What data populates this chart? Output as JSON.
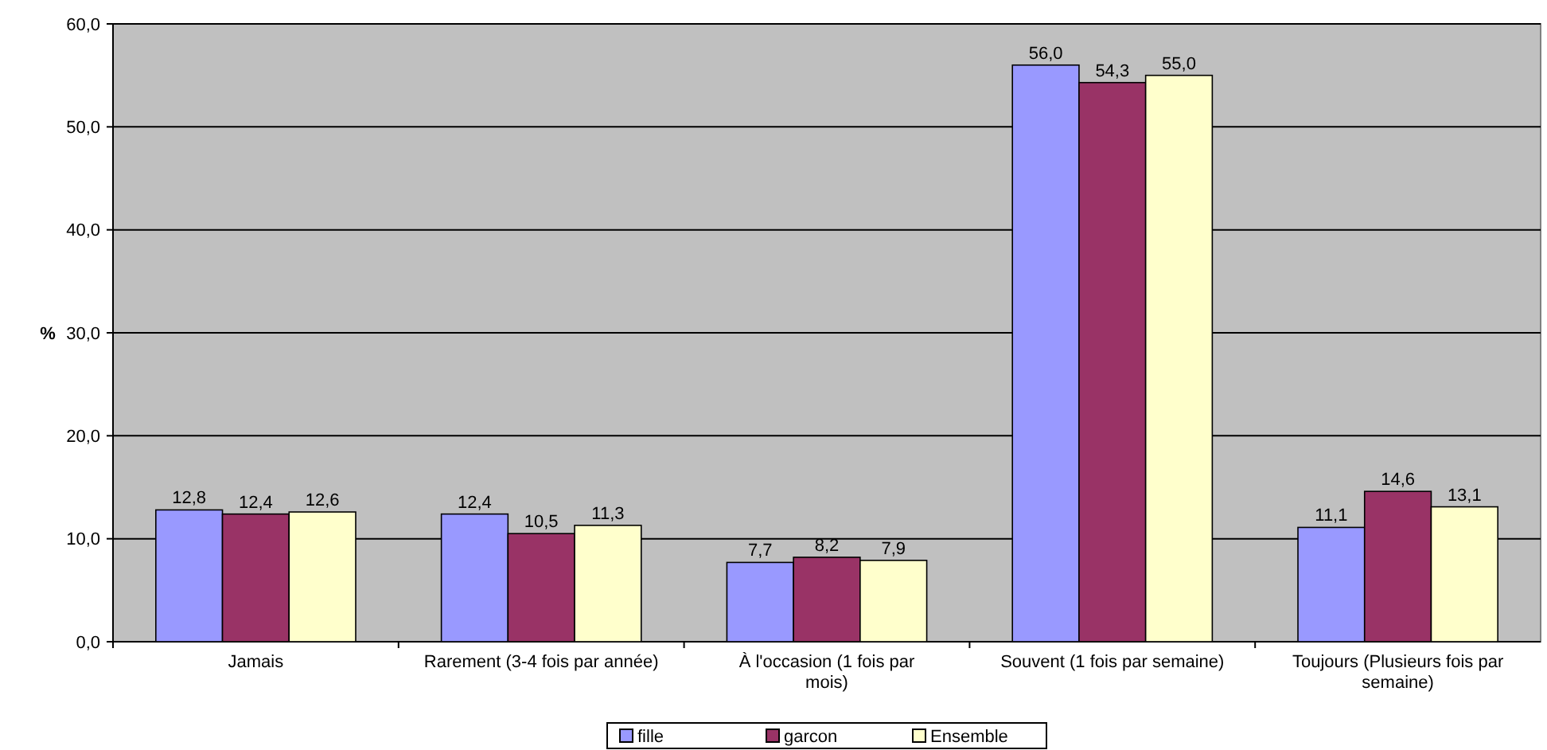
{
  "chart_data": {
    "type": "bar",
    "ylabel": "%",
    "categories": [
      "Jamais",
      "Rarement (3-4 fois par année)",
      "À l'occasion (1 fois par mois)",
      "Souvent (1 fois par semaine)",
      "Toujours (Plusieurs fois par semaine)"
    ],
    "series": [
      {
        "name": "fille",
        "color": "#9999ff",
        "values": [
          12.8,
          12.4,
          7.7,
          56.0,
          11.1
        ],
        "value_labels": [
          "12,8",
          "12,4",
          "7,7",
          "56,0",
          "11,1"
        ]
      },
      {
        "name": "garcon",
        "color": "#993366",
        "values": [
          12.4,
          10.5,
          8.2,
          54.3,
          14.6
        ],
        "value_labels": [
          "12,4",
          "10,5",
          "8,2",
          "54,3",
          "14,6"
        ]
      },
      {
        "name": "Ensemble",
        "color": "#ffffcc",
        "values": [
          12.6,
          11.3,
          7.9,
          55.0,
          13.1
        ],
        "value_labels": [
          "12,6",
          "11,3",
          "7,9",
          "55,0",
          "13,1"
        ]
      }
    ],
    "ylim": [
      0,
      60
    ],
    "yticks": [
      {
        "value": 0,
        "label": "0,0"
      },
      {
        "value": 10,
        "label": "10,0"
      },
      {
        "value": 20,
        "label": "20,0"
      },
      {
        "value": 30,
        "label": "30,0"
      },
      {
        "value": 40,
        "label": "40,0"
      },
      {
        "value": 50,
        "label": "50,0"
      },
      {
        "value": 60,
        "label": "60,0"
      }
    ],
    "grid": "y",
    "legend": "bottom"
  }
}
